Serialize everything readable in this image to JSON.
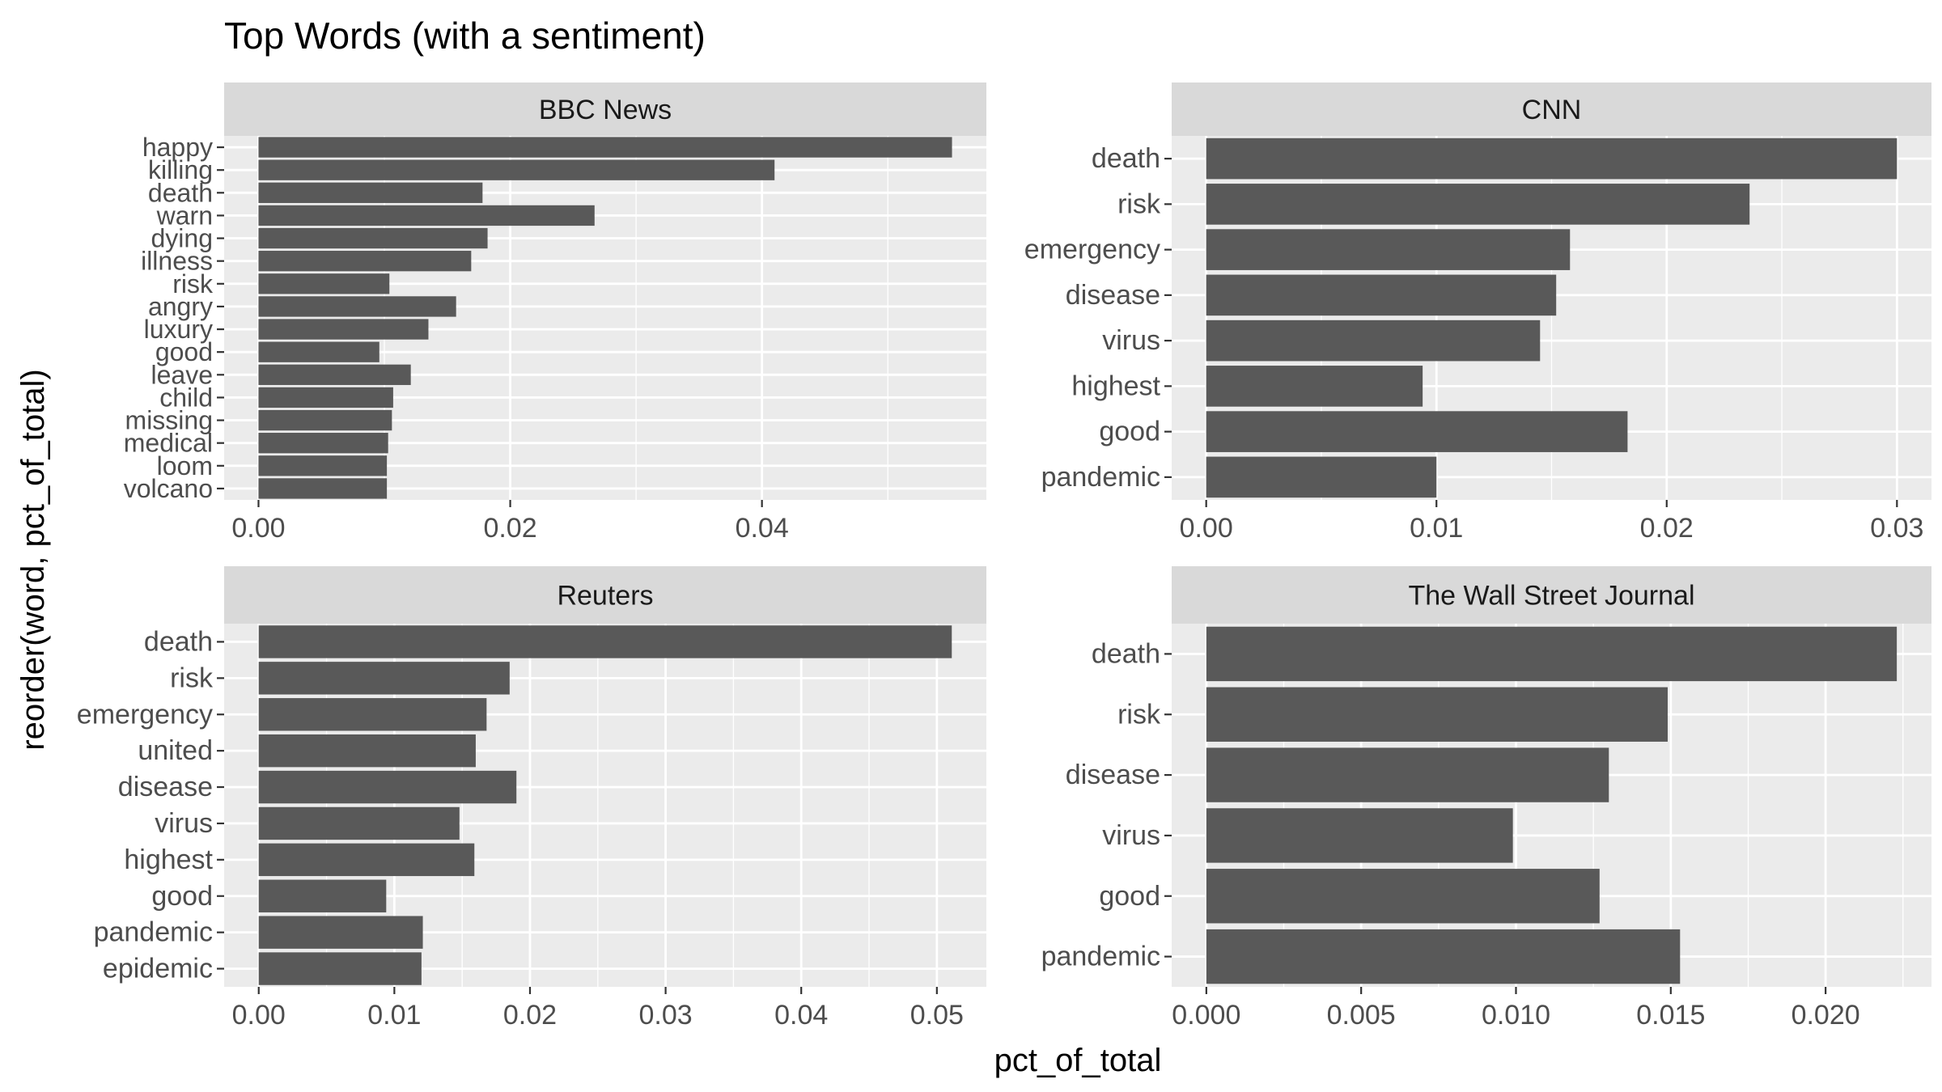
{
  "title": "Top Words (with a sentiment)",
  "xlabel": "pct_of_total",
  "ylabel": "reorder(word, pct_of_total)",
  "colors": {
    "bar": "#595959",
    "panel_bg": "#ebebeb",
    "strip_bg": "#d9d9d9",
    "grid": "#ffffff"
  },
  "chart_data": [
    {
      "type": "bar",
      "orientation": "horizontal",
      "panel": "BBC News",
      "categories": [
        "happy",
        "killing",
        "death",
        "warn",
        "dying",
        "illness",
        "risk",
        "angry",
        "luxury",
        "good",
        "leave",
        "child",
        "missing",
        "medical",
        "loom",
        "volcano"
      ],
      "values": [
        0.0551,
        0.041,
        0.0178,
        0.0267,
        0.0182,
        0.0169,
        0.0104,
        0.0157,
        0.0135,
        0.0096,
        0.0121,
        0.0107,
        0.0106,
        0.0103,
        0.0102,
        0.0102
      ],
      "xlim": [
        -0.00273,
        0.05783
      ],
      "xticks": [
        0.0,
        0.02,
        0.04
      ],
      "xtick_labels": [
        "0.00",
        "0.02",
        "0.04"
      ],
      "grid": true
    },
    {
      "type": "bar",
      "orientation": "horizontal",
      "panel": "CNN",
      "categories": [
        "death",
        "risk",
        "emergency",
        "disease",
        "virus",
        "highest",
        "good",
        "pandemic"
      ],
      "values": [
        0.03,
        0.0236,
        0.0158,
        0.0152,
        0.0145,
        0.0094,
        0.0183,
        0.01
      ],
      "xlim": [
        -0.0015,
        0.0315
      ],
      "xticks": [
        0.0,
        0.01,
        0.02,
        0.03
      ],
      "xtick_labels": [
        "0.00",
        "0.01",
        "0.02",
        "0.03"
      ],
      "grid": true
    },
    {
      "type": "bar",
      "orientation": "horizontal",
      "panel": "Reuters",
      "categories": [
        "death",
        "risk",
        "emergency",
        "united",
        "disease",
        "virus",
        "highest",
        "good",
        "pandemic",
        "epidemic"
      ],
      "values": [
        0.0511,
        0.0185,
        0.0168,
        0.016,
        0.019,
        0.0148,
        0.0159,
        0.0094,
        0.0121,
        0.012
      ],
      "xlim": [
        -0.00255,
        0.05365
      ],
      "xticks": [
        0.0,
        0.01,
        0.02,
        0.03,
        0.04,
        0.05
      ],
      "xtick_labels": [
        "0.00",
        "0.01",
        "0.02",
        "0.03",
        "0.04",
        "0.05"
      ],
      "grid": true
    },
    {
      "type": "bar",
      "orientation": "horizontal",
      "panel": "The Wall Street Journal",
      "categories": [
        "death",
        "risk",
        "disease",
        "virus",
        "good",
        "pandemic"
      ],
      "values": [
        0.0223,
        0.0149,
        0.013,
        0.0099,
        0.0127,
        0.0153
      ],
      "xlim": [
        -0.00112,
        0.02342
      ],
      "xticks": [
        0.0,
        0.005,
        0.01,
        0.015,
        0.02
      ],
      "xtick_labels": [
        "0.000",
        "0.005",
        "0.010",
        "0.015",
        "0.020"
      ],
      "grid": true
    }
  ]
}
